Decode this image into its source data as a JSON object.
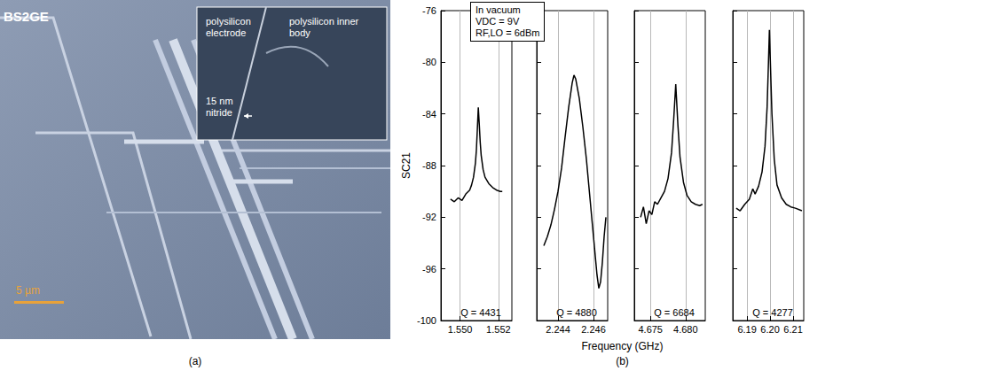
{
  "panel_a": {
    "label": "(a)",
    "marking": "BS2GE",
    "scale_bar": "5 µm",
    "inset_labels": [
      "polysilicon electrode",
      "polysilicon inner body",
      "15 nm nitride"
    ]
  },
  "panel_b": {
    "label": "(b)",
    "ylabel": "SC21",
    "xlabel": "Frequency (GHz)",
    "box": [
      "In vacuum",
      "VDC = 9V",
      "RF,LO = 6dBm"
    ]
  },
  "chart_data": [
    {
      "type": "line",
      "annotation": "Q = 4431",
      "color": "#000000",
      "marker": "none",
      "line_style": "solid",
      "grid": "x",
      "x": [
        1.5495,
        1.5497,
        1.5499,
        1.5501,
        1.5503,
        1.5505,
        1.5506,
        1.5507,
        1.5508,
        1.55085,
        1.5509,
        1.55095,
        1.551,
        1.55105,
        1.5511,
        1.5512,
        1.5513,
        1.5515,
        1.5517,
        1.5519,
        1.5521,
        1.5522
      ],
      "values": [
        -90.6,
        -90.8,
        -90.5,
        -90.7,
        -90.2,
        -89.9,
        -89.5,
        -88.9,
        -87.8,
        -86.8,
        -85.2,
        -83.5,
        -84.8,
        -86.2,
        -87.2,
        -88.3,
        -88.9,
        -89.4,
        -89.7,
        -89.9,
        -90.0,
        -90.0
      ],
      "xlim": [
        1.549,
        1.5527
      ],
      "xticks": [
        {
          "value": 1.55,
          "label": "1.550"
        },
        {
          "value": 1.552,
          "label": "1.552"
        }
      ],
      "ylim": [
        -100,
        -76
      ],
      "yticks": [
        -100,
        -96,
        -92,
        -88,
        -84,
        -80,
        -76
      ]
    },
    {
      "type": "line",
      "annotation": "Q = 4880",
      "color": "#000000",
      "marker": "none",
      "line_style": "solid",
      "grid": "x",
      "tick_labels": "x",
      "x": [
        2.2432,
        2.2434,
        2.2436,
        2.2438,
        2.244,
        2.2442,
        2.2444,
        2.2446,
        2.2448,
        2.2449,
        2.245,
        2.2452,
        2.2454,
        2.2456,
        2.2458,
        2.246,
        2.2462,
        2.2463,
        2.2464,
        2.2465,
        2.2466,
        2.2467
      ],
      "values": [
        -94.2,
        -93.5,
        -92.6,
        -91.4,
        -90.0,
        -88.2,
        -85.8,
        -83.5,
        -81.6,
        -81.0,
        -81.3,
        -82.8,
        -85.0,
        -87.5,
        -90.5,
        -93.5,
        -96.5,
        -97.5,
        -97.0,
        -95.5,
        -93.5,
        -92.0
      ],
      "xlim": [
        2.2428,
        2.2468
      ],
      "xticks": [
        {
          "value": 2.244,
          "label": "2.244"
        },
        {
          "value": 2.246,
          "label": "2.246"
        }
      ],
      "ylim": [
        -100,
        -76
      ],
      "yticks": [
        -100,
        -96,
        -92,
        -88,
        -84,
        -80,
        -76
      ]
    },
    {
      "type": "line",
      "annotation": "Q = 6684",
      "color": "#000000",
      "marker": "none",
      "line_style": "solid",
      "grid": "x",
      "tick_labels": "x",
      "x": [
        4.6736,
        4.674,
        4.6744,
        4.6748,
        4.6752,
        4.6756,
        4.676,
        4.6765,
        4.677,
        4.6775,
        4.678,
        4.6783,
        4.6786,
        4.6789,
        4.6792,
        4.6797,
        4.6802,
        4.6808,
        4.6814,
        4.682,
        4.6824
      ],
      "values": [
        -92.0,
        -91.2,
        -92.5,
        -91.5,
        -91.8,
        -90.8,
        -91.0,
        -90.5,
        -90.0,
        -89.0,
        -87.0,
        -84.5,
        -81.7,
        -84.8,
        -87.3,
        -89.3,
        -90.3,
        -90.8,
        -91.0,
        -91.1,
        -91.0
      ],
      "xlim": [
        4.6727,
        4.6828
      ],
      "xticks": [
        {
          "value": 4.675,
          "label": "4.675"
        },
        {
          "value": 4.68,
          "label": "4.680"
        }
      ],
      "ylim": [
        -100,
        -76
      ],
      "yticks": [
        -100,
        -96,
        -92,
        -88,
        -84,
        -80,
        -76
      ]
    },
    {
      "type": "line",
      "annotation": "Q = 4277",
      "color": "#000000",
      "marker": "none",
      "line_style": "solid",
      "grid": "x",
      "tick_labels": "x",
      "x": [
        6.1853,
        6.187,
        6.189,
        6.191,
        6.1925,
        6.1935,
        6.195,
        6.1965,
        6.1978,
        6.1987,
        6.1993,
        6.1997,
        6.2002,
        6.2008,
        6.2018,
        6.203,
        6.205,
        6.207,
        6.209,
        6.211,
        6.2138
      ],
      "values": [
        -91.3,
        -91.5,
        -91.0,
        -90.6,
        -89.8,
        -90.2,
        -89.6,
        -88.5,
        -86.5,
        -83.5,
        -80.0,
        -77.5,
        -80.5,
        -84.0,
        -87.5,
        -89.5,
        -90.5,
        -91.0,
        -91.2,
        -91.3,
        -91.5
      ],
      "xlim": [
        6.1838,
        6.2146
      ],
      "xticks": [
        6.19,
        {
          "value": 6.2,
          "label": "6.20"
        },
        6.21
      ],
      "ylim": [
        -100,
        -76
      ],
      "yticks": [
        -100,
        -96,
        -92,
        -88,
        -84,
        -80,
        -76
      ]
    }
  ]
}
